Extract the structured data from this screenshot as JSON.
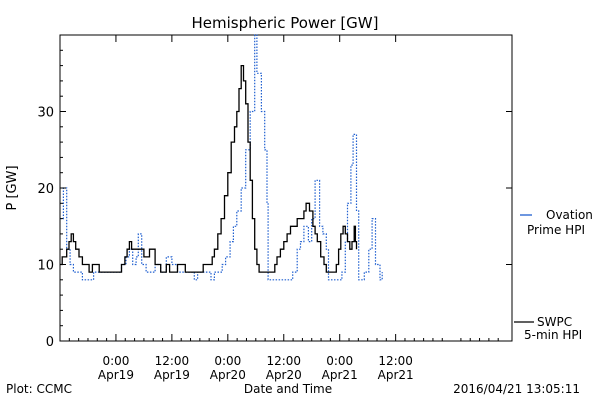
{
  "chart_data": {
    "type": "line",
    "title": "Hemispheric Power [GW]",
    "xlabel": "Date and Time",
    "ylabel": "P [GW]",
    "ylim": [
      0,
      40
    ],
    "xlim": [
      -0.5,
      3.54
    ],
    "x_units": "days since 2016-04-19 00:00",
    "y_ticks": [
      "0",
      "10",
      "20",
      "30"
    ],
    "x_ticks": [
      {
        "time": "0:00",
        "date": "Apr19"
      },
      {
        "time": "12:00",
        "date": "Apr19"
      },
      {
        "time": "0:00",
        "date": "Apr20"
      },
      {
        "time": "12:00",
        "date": "Apr20"
      },
      {
        "time": "0:00",
        "date": "Apr21"
      },
      {
        "time": "12:00",
        "date": "Apr21"
      }
    ],
    "grid": false,
    "series": [
      {
        "name": "Ovation Prime HPI",
        "legend_lines": [
          "Ovation",
          "Prime HPI"
        ],
        "color": "#1f5fd0",
        "style": "dotted-step",
        "points": [
          [
            -0.5,
            16
          ],
          [
            -0.47,
            20
          ],
          [
            -0.44,
            12
          ],
          [
            -0.41,
            10
          ],
          [
            -0.38,
            9
          ],
          [
            -0.33,
            9
          ],
          [
            -0.3,
            8
          ],
          [
            -0.22,
            8
          ],
          [
            -0.2,
            9
          ],
          [
            -0.12,
            9
          ],
          [
            -0.1,
            9
          ],
          [
            0.0,
            9
          ],
          [
            0.05,
            10
          ],
          [
            0.09,
            11
          ],
          [
            0.12,
            12
          ],
          [
            0.15,
            10
          ],
          [
            0.18,
            11
          ],
          [
            0.2,
            14
          ],
          [
            0.23,
            10
          ],
          [
            0.27,
            9
          ],
          [
            0.32,
            9
          ],
          [
            0.35,
            10
          ],
          [
            0.4,
            9
          ],
          [
            0.45,
            11
          ],
          [
            0.5,
            10
          ],
          [
            0.55,
            9
          ],
          [
            0.6,
            9
          ],
          [
            0.65,
            9
          ],
          [
            0.7,
            8
          ],
          [
            0.73,
            9
          ],
          [
            0.8,
            9
          ],
          [
            0.85,
            8
          ],
          [
            0.88,
            9
          ],
          [
            0.92,
            9
          ],
          [
            0.95,
            10
          ],
          [
            0.98,
            11
          ],
          [
            1.02,
            13
          ],
          [
            1.05,
            15
          ],
          [
            1.08,
            17
          ],
          [
            1.12,
            20
          ],
          [
            1.16,
            25
          ],
          [
            1.2,
            30
          ],
          [
            1.24,
            40
          ],
          [
            1.26,
            35
          ],
          [
            1.3,
            30
          ],
          [
            1.33,
            25
          ],
          [
            1.35,
            18
          ],
          [
            1.36,
            8
          ],
          [
            1.48,
            8
          ],
          [
            1.55,
            8
          ],
          [
            1.58,
            9
          ],
          [
            1.62,
            12
          ],
          [
            1.65,
            13
          ],
          [
            1.68,
            15
          ],
          [
            1.72,
            13
          ],
          [
            1.75,
            16
          ],
          [
            1.78,
            21
          ],
          [
            1.82,
            15
          ],
          [
            1.85,
            14
          ],
          [
            1.88,
            12
          ],
          [
            1.9,
            8
          ],
          [
            2.0,
            8
          ],
          [
            2.02,
            9
          ],
          [
            2.05,
            13
          ],
          [
            2.07,
            18
          ],
          [
            2.1,
            23
          ],
          [
            2.12,
            27
          ],
          [
            2.15,
            17
          ],
          [
            2.17,
            8
          ],
          [
            2.22,
            9
          ],
          [
            2.26,
            12
          ],
          [
            2.29,
            16
          ],
          [
            2.32,
            10
          ],
          [
            2.36,
            8
          ],
          [
            2.38,
            9
          ]
        ]
      },
      {
        "name": "SWPC 5-min HPI",
        "legend_lines": [
          "SWPC",
          "5-min HPI"
        ],
        "color": "#000000",
        "style": "solid-step",
        "points": [
          [
            -0.5,
            10
          ],
          [
            -0.48,
            11
          ],
          [
            -0.46,
            11
          ],
          [
            -0.44,
            12
          ],
          [
            -0.42,
            13
          ],
          [
            -0.4,
            14
          ],
          [
            -0.38,
            13
          ],
          [
            -0.36,
            12
          ],
          [
            -0.33,
            11
          ],
          [
            -0.3,
            10
          ],
          [
            -0.27,
            10
          ],
          [
            -0.24,
            9
          ],
          [
            -0.21,
            10
          ],
          [
            -0.18,
            10
          ],
          [
            -0.15,
            9
          ],
          [
            -0.1,
            9
          ],
          [
            -0.05,
            9
          ],
          [
            0.0,
            9
          ],
          [
            0.05,
            10
          ],
          [
            0.08,
            11
          ],
          [
            0.1,
            12
          ],
          [
            0.12,
            13
          ],
          [
            0.14,
            12
          ],
          [
            0.2,
            12
          ],
          [
            0.25,
            11
          ],
          [
            0.3,
            12
          ],
          [
            0.35,
            10
          ],
          [
            0.4,
            9
          ],
          [
            0.45,
            10
          ],
          [
            0.48,
            9
          ],
          [
            0.52,
            9
          ],
          [
            0.55,
            10
          ],
          [
            0.58,
            10
          ],
          [
            0.62,
            9
          ],
          [
            0.66,
            9
          ],
          [
            0.72,
            9
          ],
          [
            0.78,
            10
          ],
          [
            0.82,
            10
          ],
          [
            0.86,
            11
          ],
          [
            0.88,
            12
          ],
          [
            0.91,
            14
          ],
          [
            0.94,
            16
          ],
          [
            0.97,
            19
          ],
          [
            1.0,
            22
          ],
          [
            1.03,
            26
          ],
          [
            1.06,
            28
          ],
          [
            1.08,
            30
          ],
          [
            1.1,
            33
          ],
          [
            1.12,
            36
          ],
          [
            1.14,
            34
          ],
          [
            1.16,
            31
          ],
          [
            1.18,
            26
          ],
          [
            1.2,
            21
          ],
          [
            1.22,
            16
          ],
          [
            1.24,
            12
          ],
          [
            1.26,
            10
          ],
          [
            1.28,
            9
          ],
          [
            1.33,
            9
          ],
          [
            1.38,
            9
          ],
          [
            1.42,
            10
          ],
          [
            1.44,
            11
          ],
          [
            1.47,
            12
          ],
          [
            1.5,
            13
          ],
          [
            1.53,
            14
          ],
          [
            1.56,
            15
          ],
          [
            1.6,
            15
          ],
          [
            1.62,
            16
          ],
          [
            1.66,
            16
          ],
          [
            1.68,
            17
          ],
          [
            1.7,
            18
          ],
          [
            1.73,
            17
          ],
          [
            1.76,
            15
          ],
          [
            1.78,
            14
          ],
          [
            1.8,
            13
          ],
          [
            1.83,
            11
          ],
          [
            1.86,
            10
          ],
          [
            1.88,
            9
          ],
          [
            1.92,
            9
          ],
          [
            1.95,
            9
          ],
          [
            1.97,
            10
          ],
          [
            1.99,
            12
          ],
          [
            2.01,
            14
          ],
          [
            2.03,
            15
          ],
          [
            2.05,
            14
          ],
          [
            2.07,
            13
          ],
          [
            2.09,
            12
          ],
          [
            2.11,
            13
          ],
          [
            2.13,
            15
          ],
          [
            2.14,
            13
          ],
          [
            2.15,
            12
          ]
        ]
      }
    ]
  },
  "footer": {
    "plot_credit": "Plot: CCMC",
    "timestamp": "2016/04/21 13:05:11"
  }
}
